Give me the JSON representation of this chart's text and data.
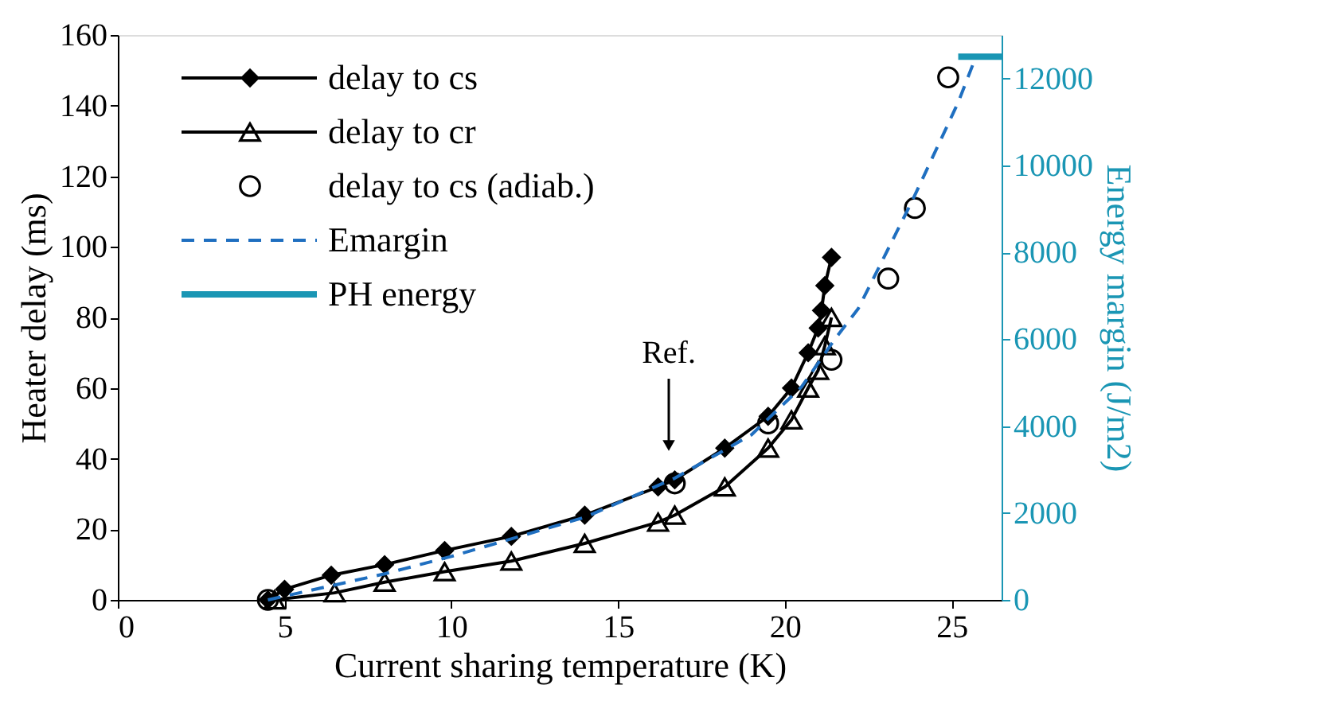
{
  "chart_data": {
    "type": "line",
    "xlabel": "Current sharing temperature (K)",
    "ylabel": "Heater delay (ms)",
    "y2label": "Energy margin (J/m2)",
    "xlim": [
      0,
      26.5
    ],
    "xticks": [
      0,
      5,
      10,
      15,
      20,
      25
    ],
    "ylim": [
      0,
      160
    ],
    "yticks": [
      0,
      20,
      40,
      60,
      80,
      100,
      120,
      140,
      160
    ],
    "y2lim": [
      0,
      13000
    ],
    "y2ticks": [
      0,
      2000,
      4000,
      6000,
      8000,
      10000,
      12000
    ],
    "grid": false,
    "legend": "top left",
    "annotations": [
      "Ref."
    ],
    "series": [
      {
        "name": "delay to cs",
        "marker": "diamond",
        "line_style": "solid",
        "color": "#000000",
        "x": [
          4.5,
          5,
          6.4,
          8,
          9.8,
          11.8,
          14,
          16.2,
          16.7,
          18.2,
          19.5,
          20.2,
          20.7,
          21,
          21.1,
          21.2,
          21.4
        ],
        "values": [
          0,
          3,
          7,
          10,
          14,
          18,
          24,
          32,
          34,
          43,
          52,
          60,
          70,
          77,
          82,
          89,
          97
        ]
      },
      {
        "name": "delay to cr",
        "marker": "triangle",
        "line_style": "solid",
        "color": "#000000",
        "x": [
          4.7,
          6.5,
          8,
          9.8,
          11.8,
          14,
          16.2,
          16.7,
          18.2,
          19.5,
          20.2,
          20.7,
          21,
          21.2,
          21.4
        ],
        "values": [
          0,
          2,
          5,
          8,
          11,
          16,
          22,
          24,
          32,
          43,
          51,
          60,
          65,
          72,
          80
        ]
      },
      {
        "name": "delay to cs (adiab.)",
        "type": "scatter",
        "marker": "circle",
        "color": "#000000",
        "x": [
          4.5,
          16.7,
          19.5,
          21.4,
          23.1,
          23.9,
          24.9
        ],
        "values": [
          0,
          33,
          50,
          68,
          91,
          111,
          148
        ]
      },
      {
        "name": "Emargin",
        "axis": "y2",
        "marker": "none",
        "line_style": "dashed",
        "color": "#1f6fc0",
        "x": [
          4.5,
          8,
          10,
          14,
          16.7,
          19,
          20.5,
          21.5,
          22.2,
          23.8,
          25.2,
          25.7
        ],
        "values": [
          0,
          600,
          1000,
          1900,
          2800,
          3800,
          4900,
          6000,
          6700,
          9150,
          11450,
          12440
        ]
      },
      {
        "name": "PH energy",
        "axis": "y2",
        "marker": "none",
        "line_style": "solid",
        "color": "#1a96b4",
        "x": [
          25.2,
          26.5
        ],
        "values": [
          12500,
          12500
        ]
      }
    ]
  }
}
